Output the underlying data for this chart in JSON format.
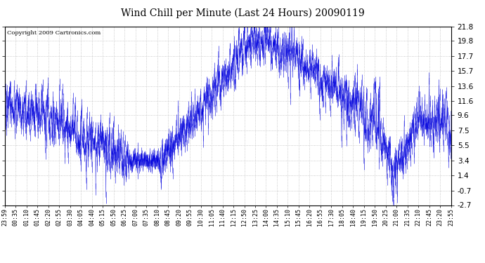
{
  "title": "Wind Chill per Minute (Last 24 Hours) 20090119",
  "copyright": "Copyright 2009 Cartronics.com",
  "yticks": [
    21.8,
    19.8,
    17.7,
    15.7,
    13.6,
    11.6,
    9.6,
    7.5,
    5.5,
    3.4,
    1.4,
    -0.7,
    -2.7
  ],
  "ymin": -2.7,
  "ymax": 21.8,
  "line_color": "#0000dd",
  "background_color": "#ffffff",
  "grid_color": "#bbbbbb",
  "xtick_labels": [
    "23:59",
    "00:35",
    "01:10",
    "01:45",
    "02:20",
    "02:55",
    "03:30",
    "04:05",
    "04:40",
    "05:15",
    "05:50",
    "06:25",
    "07:00",
    "07:35",
    "08:10",
    "08:45",
    "09:20",
    "09:55",
    "10:30",
    "11:05",
    "11:40",
    "12:15",
    "12:50",
    "13:25",
    "14:00",
    "14:35",
    "15:10",
    "15:45",
    "16:20",
    "16:55",
    "17:30",
    "18:05",
    "18:40",
    "19:15",
    "19:50",
    "20:25",
    "21:00",
    "21:35",
    "22:10",
    "22:45",
    "23:20",
    "23:55"
  ],
  "num_points": 1440
}
